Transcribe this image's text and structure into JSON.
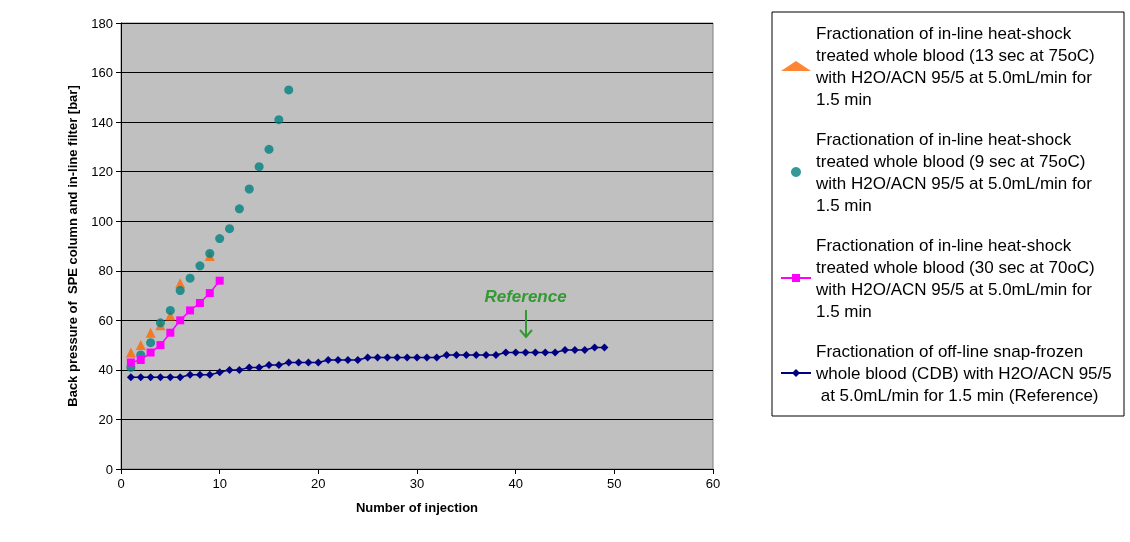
{
  "chart_data": {
    "type": "line",
    "xlabel": "Number of injection",
    "ylabel": "Back pressure of  SPE column and in-line filter [bar]",
    "xlim": [
      0,
      60
    ],
    "xticks": [
      0,
      10,
      20,
      30,
      40,
      50,
      60
    ],
    "ylim": [
      0,
      180
    ],
    "yticks": [
      0,
      20,
      40,
      60,
      80,
      100,
      120,
      140,
      160,
      180
    ],
    "grid": "y",
    "legend": "right",
    "annotations": [
      {
        "text": "Reference",
        "x": 41,
        "y": 47
      }
    ],
    "series": [
      {
        "name": "Fractionation of in-line heat-shock treated whole blood (13 sec at 75oC) with H2O/ACN 95/5 at 5.0mL/min for 1.5 min",
        "type": "scatter",
        "marker": "triangle",
        "color": "#ff6600",
        "x": [
          1,
          2,
          3,
          4,
          5,
          6,
          7,
          8,
          9
        ],
        "values": [
          47,
          50,
          55,
          58,
          62,
          75,
          null,
          null,
          86
        ]
      },
      {
        "name": "Fractionation of in-line heat-shock treated whole blood (9 sec at 75oC) with H2O/ACN 95/5 at 5.0mL/min for 1.5 min",
        "type": "scatter",
        "marker": "circle",
        "color": "#008080",
        "x": [
          1,
          2,
          3,
          4,
          5,
          6,
          7,
          8,
          9,
          10,
          11,
          12,
          13,
          14,
          15,
          16,
          17
        ],
        "values": [
          41,
          46,
          51,
          59,
          64,
          72,
          77,
          82,
          87,
          93,
          97,
          105,
          113,
          122,
          129,
          141,
          153
        ]
      },
      {
        "name": "Fractionation of in-line heat-shock treated whole blood (30 sec at 70oC) with H2O/ACN 95/5 at 5.0mL/min for 1.5 min",
        "marker": "square",
        "color": "#ff00ff",
        "x": [
          1,
          2,
          3,
          4,
          5,
          6,
          7,
          8,
          9,
          10
        ],
        "values": [
          43,
          44,
          47,
          50,
          55,
          60,
          64,
          67,
          71,
          76
        ]
      },
      {
        "name": "Fractionation of off-line snap-frozen whole blood (CDB) with H2O/ACN 95/5 at 5.0mL/min for 1.5 min (Reference)",
        "marker": "diamond",
        "color": "#000080",
        "x": [
          1,
          2,
          3,
          4,
          5,
          6,
          7,
          8,
          9,
          10,
          11,
          12,
          13,
          14,
          15,
          16,
          17,
          18,
          19,
          20,
          21,
          22,
          23,
          24,
          25,
          26,
          27,
          28,
          29,
          30,
          31,
          32,
          33,
          34,
          35,
          36,
          37,
          38,
          39,
          40,
          41,
          42,
          43,
          44,
          45,
          46,
          47,
          48,
          49
        ],
        "values": [
          37,
          37,
          37,
          37,
          37,
          37,
          38,
          38,
          38,
          39,
          40,
          40,
          41,
          41,
          42,
          42,
          43,
          43,
          43,
          43,
          44,
          44,
          44,
          44,
          45,
          45,
          45,
          45,
          45,
          45,
          45,
          45,
          46,
          46,
          46,
          46,
          46,
          46,
          47,
          47,
          47,
          47,
          47,
          47,
          48,
          48,
          48,
          49,
          49
        ]
      }
    ]
  }
}
